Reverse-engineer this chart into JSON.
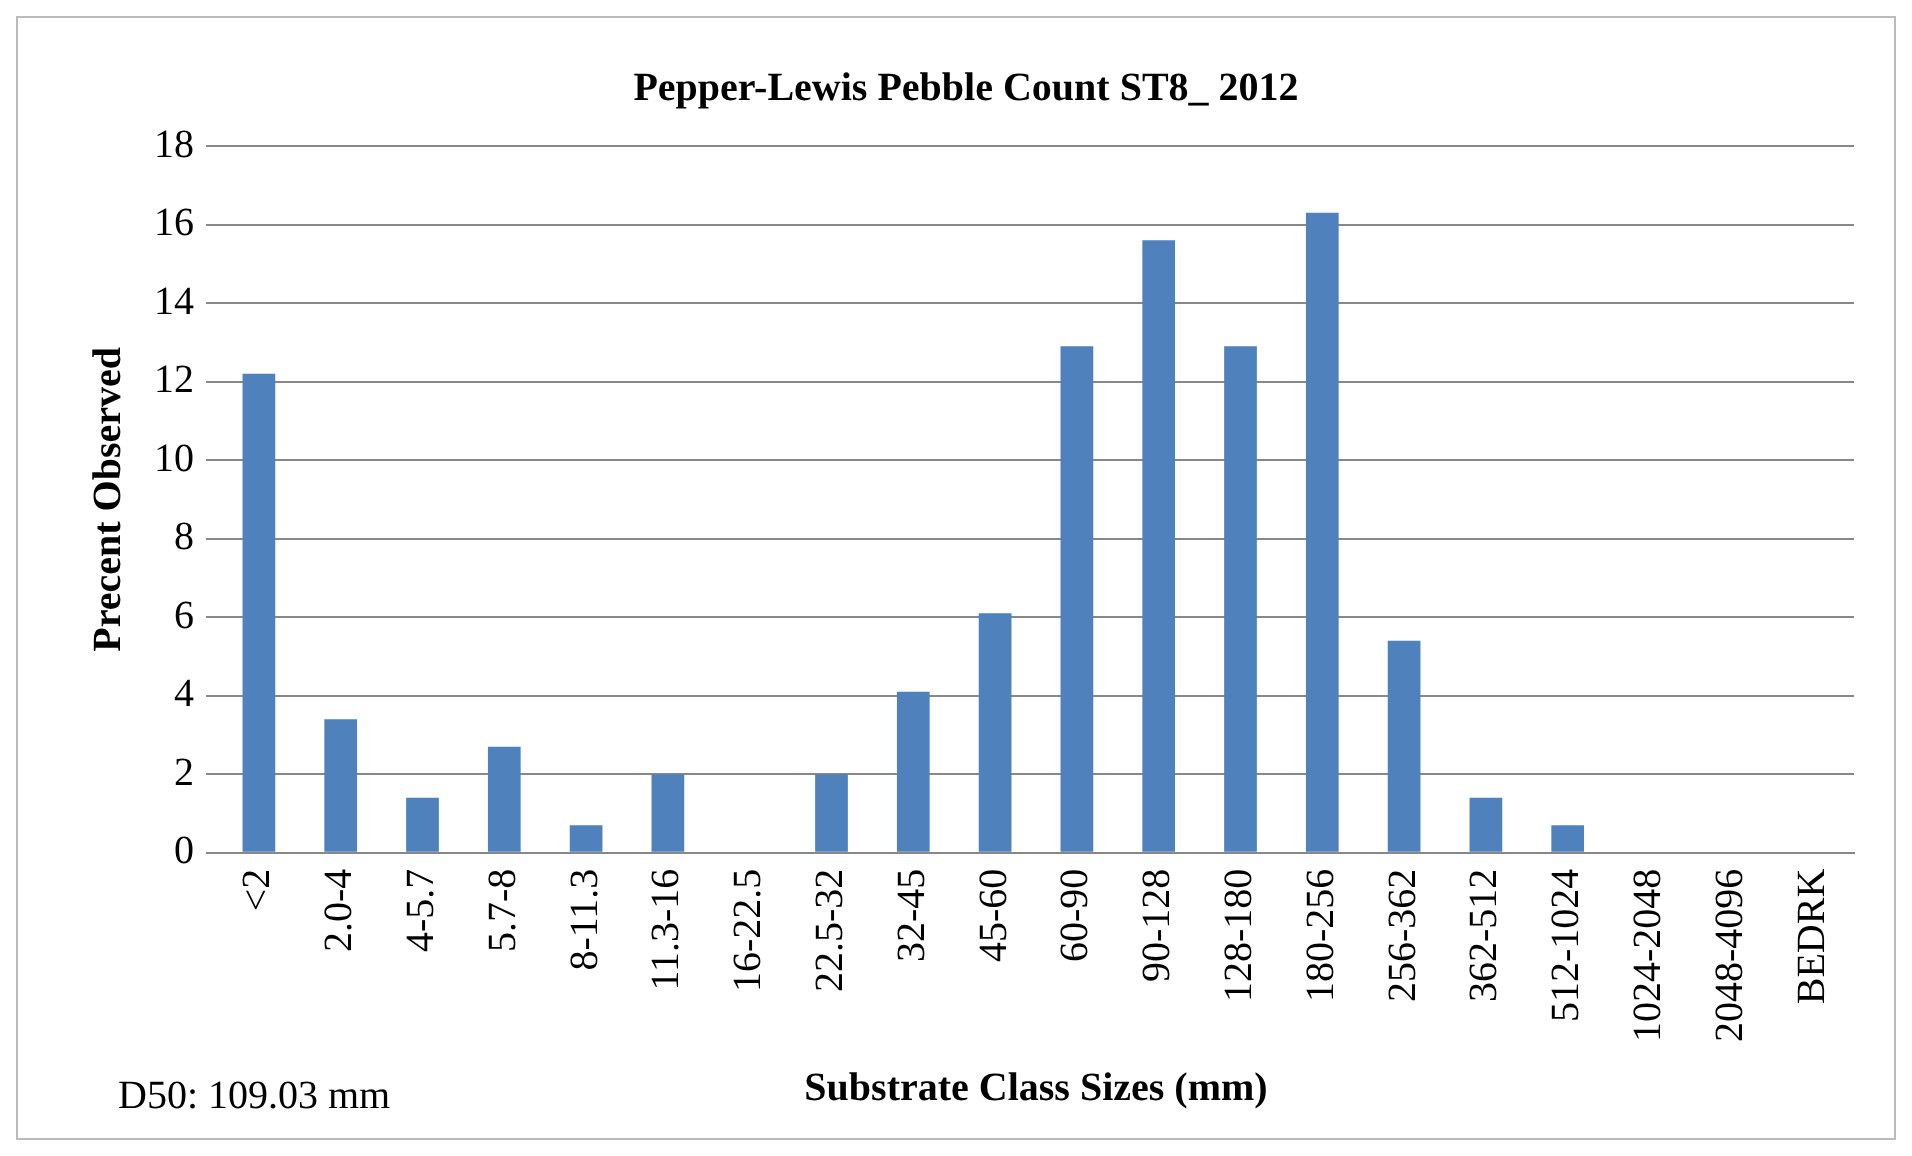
{
  "chart_data": {
    "type": "bar",
    "title": "Pepper-Lewis Pebble Count ST8_ 2012",
    "xlabel": "Substrate Class Sizes (mm)",
    "ylabel": "Precent Observed",
    "categories": [
      "<2",
      "2.0-4",
      "4-5.7",
      "5.7-8",
      "8-11.3",
      "11.3-16",
      "16-22.5",
      "22.5-32",
      "32-45",
      "45-60",
      "60-90",
      "90-128",
      "128-180",
      "180-256",
      "256-362",
      "362-512",
      "512-1024",
      "1024-2048",
      "2048-4096",
      "BEDRK"
    ],
    "values": [
      12.2,
      3.4,
      1.4,
      2.7,
      0.7,
      2.0,
      0,
      2.0,
      4.1,
      6.1,
      12.9,
      15.6,
      12.9,
      16.3,
      5.4,
      1.4,
      0.7,
      0,
      0,
      0
    ],
    "color": "#4f81bd",
    "ylim": [
      0,
      18
    ],
    "yticks": [
      0,
      2,
      4,
      6,
      8,
      10,
      12,
      14,
      16,
      18
    ],
    "grid": "y",
    "legend": false,
    "annotations": [
      "D50: 109.03 mm"
    ]
  }
}
